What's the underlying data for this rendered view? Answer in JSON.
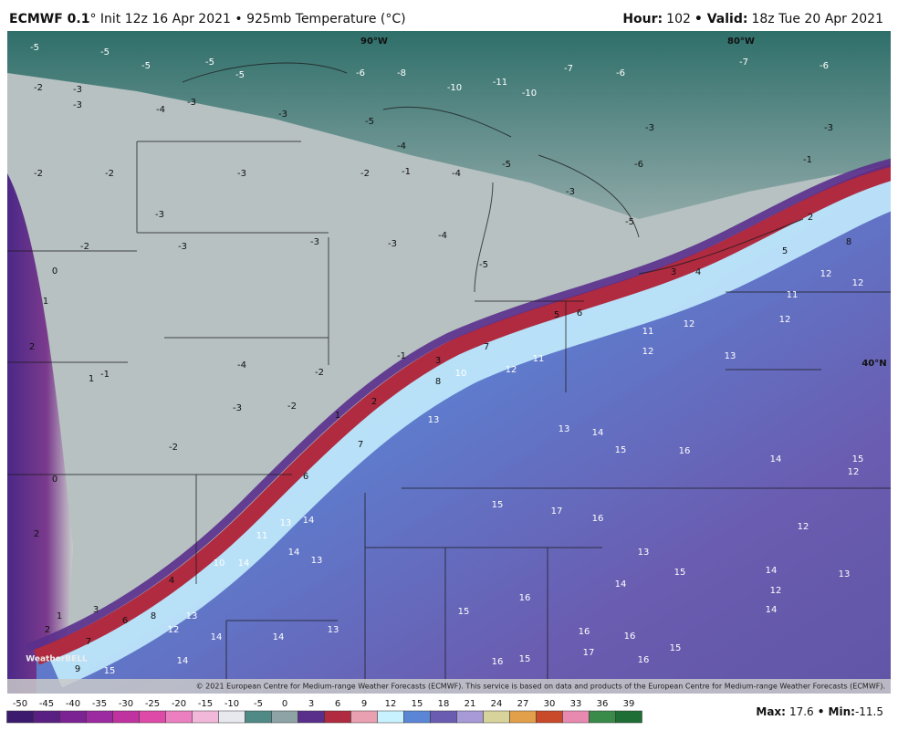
{
  "header": {
    "model": "ECMWF 0.1",
    "description": "° Init 12z 16 Apr 2021 • 925mb Temperature (°C)",
    "hour_label": "Hour:",
    "hour": 102,
    "valid_label": "• Valid:",
    "valid": "18z Tue 20 Apr 2021"
  },
  "map": {
    "lon_labels": [
      "90°W",
      "80°W"
    ],
    "lat_labels": [
      "40°N"
    ],
    "temperature_labels": [
      -5,
      -5,
      -5,
      -5,
      -5,
      -6,
      -8,
      -10,
      -11,
      -10,
      -7,
      -6,
      -7,
      -6,
      -2,
      -3,
      -4,
      -3,
      -3,
      -3,
      -5,
      -4,
      -3,
      -3,
      -1,
      -6,
      -2,
      -2,
      -3,
      -3,
      -2,
      -1,
      -4,
      -5,
      -3,
      -5,
      -2,
      -3,
      -3,
      -3,
      -4,
      -5,
      0,
      1,
      2,
      1,
      0,
      2,
      -1,
      -2,
      -3,
      -2,
      -4,
      -2,
      -1,
      1,
      2,
      3,
      5,
      6,
      7,
      8,
      4,
      3,
      2,
      5,
      8,
      12,
      11,
      12,
      12,
      13,
      12,
      11,
      12,
      12,
      10,
      11,
      13,
      14,
      13,
      15,
      16,
      14,
      15,
      12,
      6,
      7,
      11,
      13,
      14,
      15,
      17,
      16,
      12,
      14,
      10,
      14,
      13,
      4,
      6,
      8,
      12,
      13,
      14,
      14,
      13,
      15,
      16,
      14,
      15,
      13,
      16,
      16,
      17,
      15,
      16,
      14,
      12,
      2,
      1,
      3,
      7,
      9,
      15,
      14,
      16,
      15,
      13,
      14
    ],
    "copyright": "© 2021 European Centre for Medium-range Weather Forecasts (ECMWF). This service is based on data and products of the European Centre for Medium-range Weather Forecasts (ECMWF).",
    "logo": "WeatherBELL"
  },
  "colorbar": {
    "ticks": [
      -50,
      -45,
      -40,
      -35,
      -30,
      -25,
      -20,
      -15,
      -10,
      -5,
      0,
      3,
      6,
      9,
      12,
      15,
      18,
      21,
      24,
      27,
      30,
      33,
      36,
      39
    ]
  },
  "stats": {
    "max_label": "Max:",
    "max": 17.6,
    "min_label": "• Min:",
    "min": -11.5
  }
}
